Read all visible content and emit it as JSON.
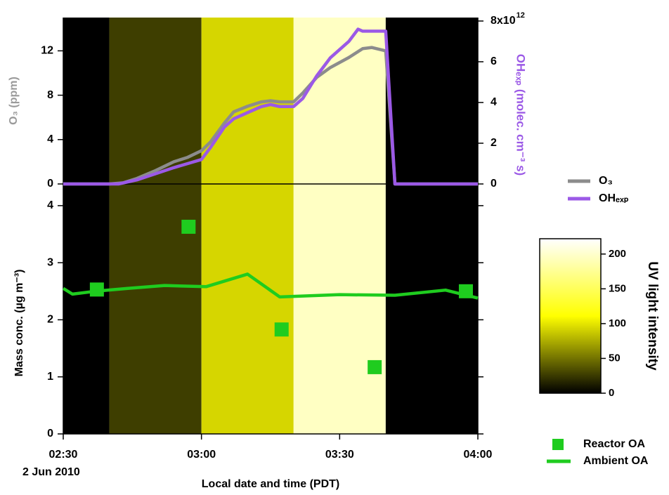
{
  "chart_data": [
    {
      "type": "line",
      "xlim": [
        150,
        240
      ],
      "ylim": [
        0,
        15
      ],
      "yticks": [
        0,
        4,
        8,
        12
      ],
      "ylabel": "O₃ (ppm)",
      "y2lim": [
        0,
        8.17
      ],
      "y2ticks": [
        0,
        2,
        4,
        6,
        {
          "value": 8,
          "label": "8x10"
        }
      ],
      "y2_exponent": "12",
      "y2label": "OHₑₓₚ (molec. cm⁻³ s)",
      "bands": [
        {
          "start": 150,
          "end": 160,
          "value": 0
        },
        {
          "start": 160,
          "end": 180,
          "value": 27
        },
        {
          "start": 180,
          "end": 200,
          "value": 93
        },
        {
          "start": 200,
          "end": 220,
          "value": 196
        },
        {
          "start": 220,
          "end": 240,
          "value": 0
        }
      ],
      "series": [
        {
          "name": "O₃",
          "color": "#8c8c8c",
          "axis": "y",
          "x": [
            150,
            160,
            163,
            166,
            170,
            174,
            177,
            180,
            182,
            185,
            187,
            190,
            193,
            195,
            197,
            200,
            202,
            205,
            208,
            212,
            215,
            217,
            220,
            222,
            240
          ],
          "y": [
            0,
            0,
            0.1,
            0.5,
            1.2,
            2,
            2.4,
            3,
            3.8,
            5.5,
            6.5,
            7,
            7.4,
            7.5,
            7.4,
            7.4,
            8.2,
            9.6,
            10.5,
            11.4,
            12.2,
            12.3,
            12,
            0,
            0
          ]
        },
        {
          "name": "OHₑₓₚ",
          "color": "#9b59e6",
          "axis": "y2",
          "x": [
            150,
            162,
            166,
            170,
            174,
            177,
            180,
            182,
            185,
            187,
            190,
            193,
            195,
            197,
            200,
            202,
            205,
            208,
            212,
            214,
            215,
            218,
            220,
            222,
            240
          ],
          "y": [
            0,
            0,
            0.2,
            0.5,
            0.8,
            1,
            1.2,
            1.8,
            2.8,
            3.2,
            3.5,
            3.8,
            3.9,
            3.8,
            3.8,
            4.2,
            5.3,
            6.2,
            7,
            7.6,
            7.5,
            7.5,
            7.5,
            0,
            0
          ]
        }
      ]
    },
    {
      "type": "line",
      "xlim": [
        150,
        240
      ],
      "xticks": [
        {
          "value": 150,
          "label": "02:30"
        },
        {
          "value": 180,
          "label": "03:00"
        },
        {
          "value": 210,
          "label": "03:30"
        },
        {
          "value": 240,
          "label": "04:00"
        }
      ],
      "x_sublabel": "2 Jun 2010",
      "xlabel": "Local date and time (PDT)",
      "ylim": [
        0,
        4.38
      ],
      "yticks": [
        0,
        1,
        2,
        3,
        4
      ],
      "ylabel": "Mass conc. (µg m⁻³)",
      "series": [
        {
          "name": "Reactor OA",
          "color": "#1fcc1f",
          "mode": "markers",
          "x": [
            157.3,
            177.2,
            197.4,
            217.6,
            237.4
          ],
          "y": [
            2.53,
            3.63,
            1.83,
            1.17,
            2.5
          ]
        },
        {
          "name": "Ambient OA",
          "color": "#1fcc1f",
          "mode": "line",
          "x": [
            150,
            152,
            157,
            164,
            172,
            181,
            190,
            197,
            210,
            222,
            233,
            240
          ],
          "y": [
            2.55,
            2.45,
            2.5,
            2.55,
            2.6,
            2.58,
            2.8,
            2.4,
            2.44,
            2.43,
            2.52,
            2.38
          ]
        }
      ]
    },
    {
      "type": "colorbar",
      "label": "UV light intensity",
      "clim": [
        0,
        222
      ],
      "ticks": [
        0,
        50,
        100,
        150,
        200
      ],
      "colors": [
        "#000000",
        "#ffff00",
        "#ffffff"
      ]
    }
  ]
}
